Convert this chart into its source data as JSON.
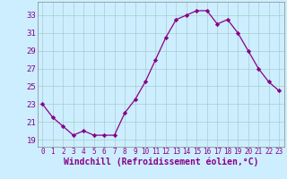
{
  "hours": [
    0,
    1,
    2,
    3,
    4,
    5,
    6,
    7,
    8,
    9,
    10,
    11,
    12,
    13,
    14,
    15,
    16,
    17,
    18,
    19,
    20,
    21,
    22,
    23
  ],
  "values": [
    23,
    21.5,
    20.5,
    19.5,
    20,
    19.5,
    19.5,
    19.5,
    22,
    23.5,
    25.5,
    28,
    30.5,
    32.5,
    33,
    33.5,
    33.5,
    32,
    32.5,
    31,
    29,
    27,
    25.5,
    24.5
  ],
  "line_color": "#880088",
  "marker": "D",
  "marker_size": 2.2,
  "bg_color": "#cceeff",
  "grid_color": "#aacccc",
  "xlabel": "Windchill (Refroidissement éolien,°C)",
  "xlabel_fontsize": 7,
  "ylabel_ticks": [
    19,
    21,
    23,
    25,
    27,
    29,
    31,
    33
  ],
  "ylim": [
    18.2,
    34.5
  ],
  "xlim": [
    -0.5,
    23.5
  ],
  "xtick_fontsize": 5.5,
  "ytick_fontsize": 6.5
}
